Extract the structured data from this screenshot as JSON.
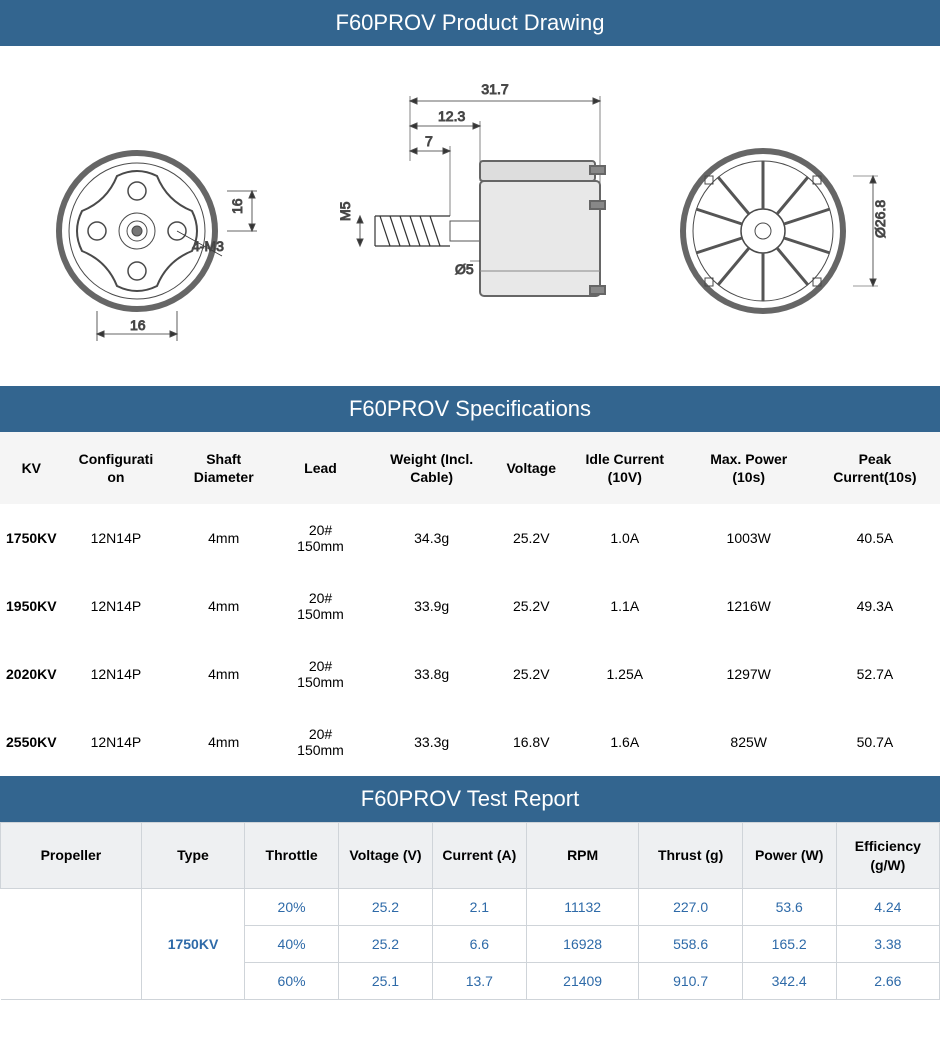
{
  "colors": {
    "header_bg": "#33658f",
    "header_text": "#ffffff",
    "spec_header_bg": "#f5f5f5",
    "test_header_bg": "#eef0f2",
    "test_border": "#cfd4d9",
    "blue_value": "#2e6aa8",
    "body_text": "#000000"
  },
  "sections": {
    "drawing_title": "F60PROV Product Drawing",
    "specs_title": "F60PROV Specifications",
    "test_title": "F60PROV Test Report"
  },
  "drawing_dims": {
    "d1": "16",
    "d2": "4-M3",
    "d3": "16",
    "d4": "31.7",
    "d5": "12.3",
    "d6": "7",
    "d7": "M5",
    "d8": "Ø5",
    "d9": "Ø26.8"
  },
  "specs": {
    "columns": [
      "KV",
      "Configurati on",
      "Shaft Diameter",
      "Lead",
      "Weight (Incl. Cable)",
      "Voltage",
      "Idle Current (10V)",
      "Max. Power (10s)",
      "Peak Current(10s)"
    ],
    "rows": [
      [
        "1750KV",
        "12N14P",
        "4mm",
        "20# 150mm",
        "34.3g",
        "25.2V",
        "1.0A",
        "1003W",
        "40.5A"
      ],
      [
        "1950KV",
        "12N14P",
        "4mm",
        "20# 150mm",
        "33.9g",
        "25.2V",
        "1.1A",
        "1216W",
        "49.3A"
      ],
      [
        "2020KV",
        "12N14P",
        "4mm",
        "20# 150mm",
        "33.8g",
        "25.2V",
        "1.25A",
        "1297W",
        "52.7A"
      ],
      [
        "2550KV",
        "12N14P",
        "4mm",
        "20# 150mm",
        "33.3g",
        "16.8V",
        "1.6A",
        "825W",
        "50.7A"
      ]
    ]
  },
  "test": {
    "columns": [
      "Propeller",
      "Type",
      "Throttle",
      "Voltage (V)",
      "Current (A)",
      "RPM",
      "Thrust (g)",
      "Power (W)",
      "Efficiency (g/W)"
    ],
    "propeller_label": "",
    "type_label": "1750KV",
    "rows": [
      [
        "20%",
        "25.2",
        "2.1",
        "11132",
        "227.0",
        "53.6",
        "4.24"
      ],
      [
        "40%",
        "25.2",
        "6.6",
        "16928",
        "558.6",
        "165.2",
        "3.38"
      ],
      [
        "60%",
        "25.1",
        "13.7",
        "21409",
        "910.7",
        "342.4",
        "2.66"
      ]
    ]
  }
}
